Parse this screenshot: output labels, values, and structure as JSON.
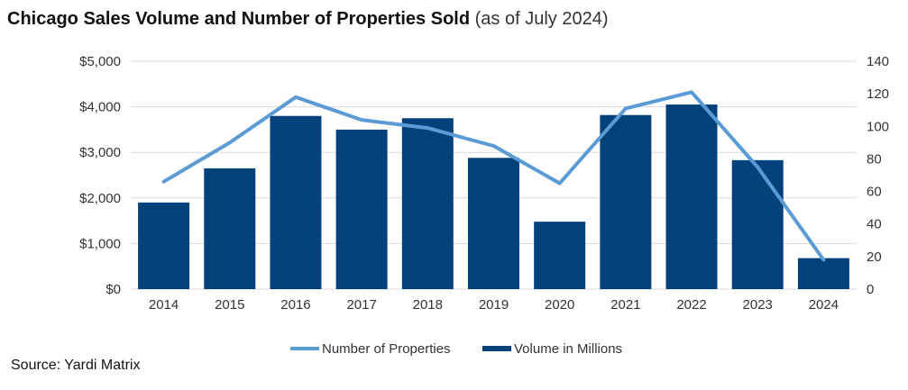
{
  "title": "Chicago Sales Volume and Number of Properties Sold",
  "subtitle": "(as of July 2024)",
  "source": "Source: Yardi Matrix",
  "colors": {
    "bars": "#03417a",
    "line": "#5b9bd5",
    "grid": "#d9d9d9",
    "axis_text": "#333333"
  },
  "chart_data": {
    "type": "bar",
    "categories": [
      "2014",
      "2015",
      "2016",
      "2017",
      "2018",
      "2019",
      "2020",
      "2021",
      "2022",
      "2023",
      "2024"
    ],
    "series": [
      {
        "name": "Volume in Millions",
        "type": "bar",
        "axis": "left",
        "values": [
          1900,
          2650,
          3800,
          3500,
          3750,
          2880,
          1480,
          3820,
          4050,
          2830,
          680
        ]
      },
      {
        "name": "Number of Properties",
        "type": "line",
        "axis": "right",
        "values": [
          66,
          90,
          118,
          104,
          99,
          88,
          65,
          111,
          121,
          75,
          18
        ]
      }
    ],
    "y_left": {
      "min": 0,
      "max": 5000,
      "ticks": [
        "$0",
        "$1,000",
        "$2,000",
        "$3,000",
        "$4,000",
        "$5,000"
      ]
    },
    "y_right": {
      "min": 0,
      "max": 140,
      "ticks": [
        "0",
        "20",
        "40",
        "60",
        "80",
        "100",
        "120",
        "140"
      ]
    },
    "legend": [
      "Number of Properties",
      "Volume in Millions"
    ],
    "legend_position": "bottom",
    "grid": true
  }
}
